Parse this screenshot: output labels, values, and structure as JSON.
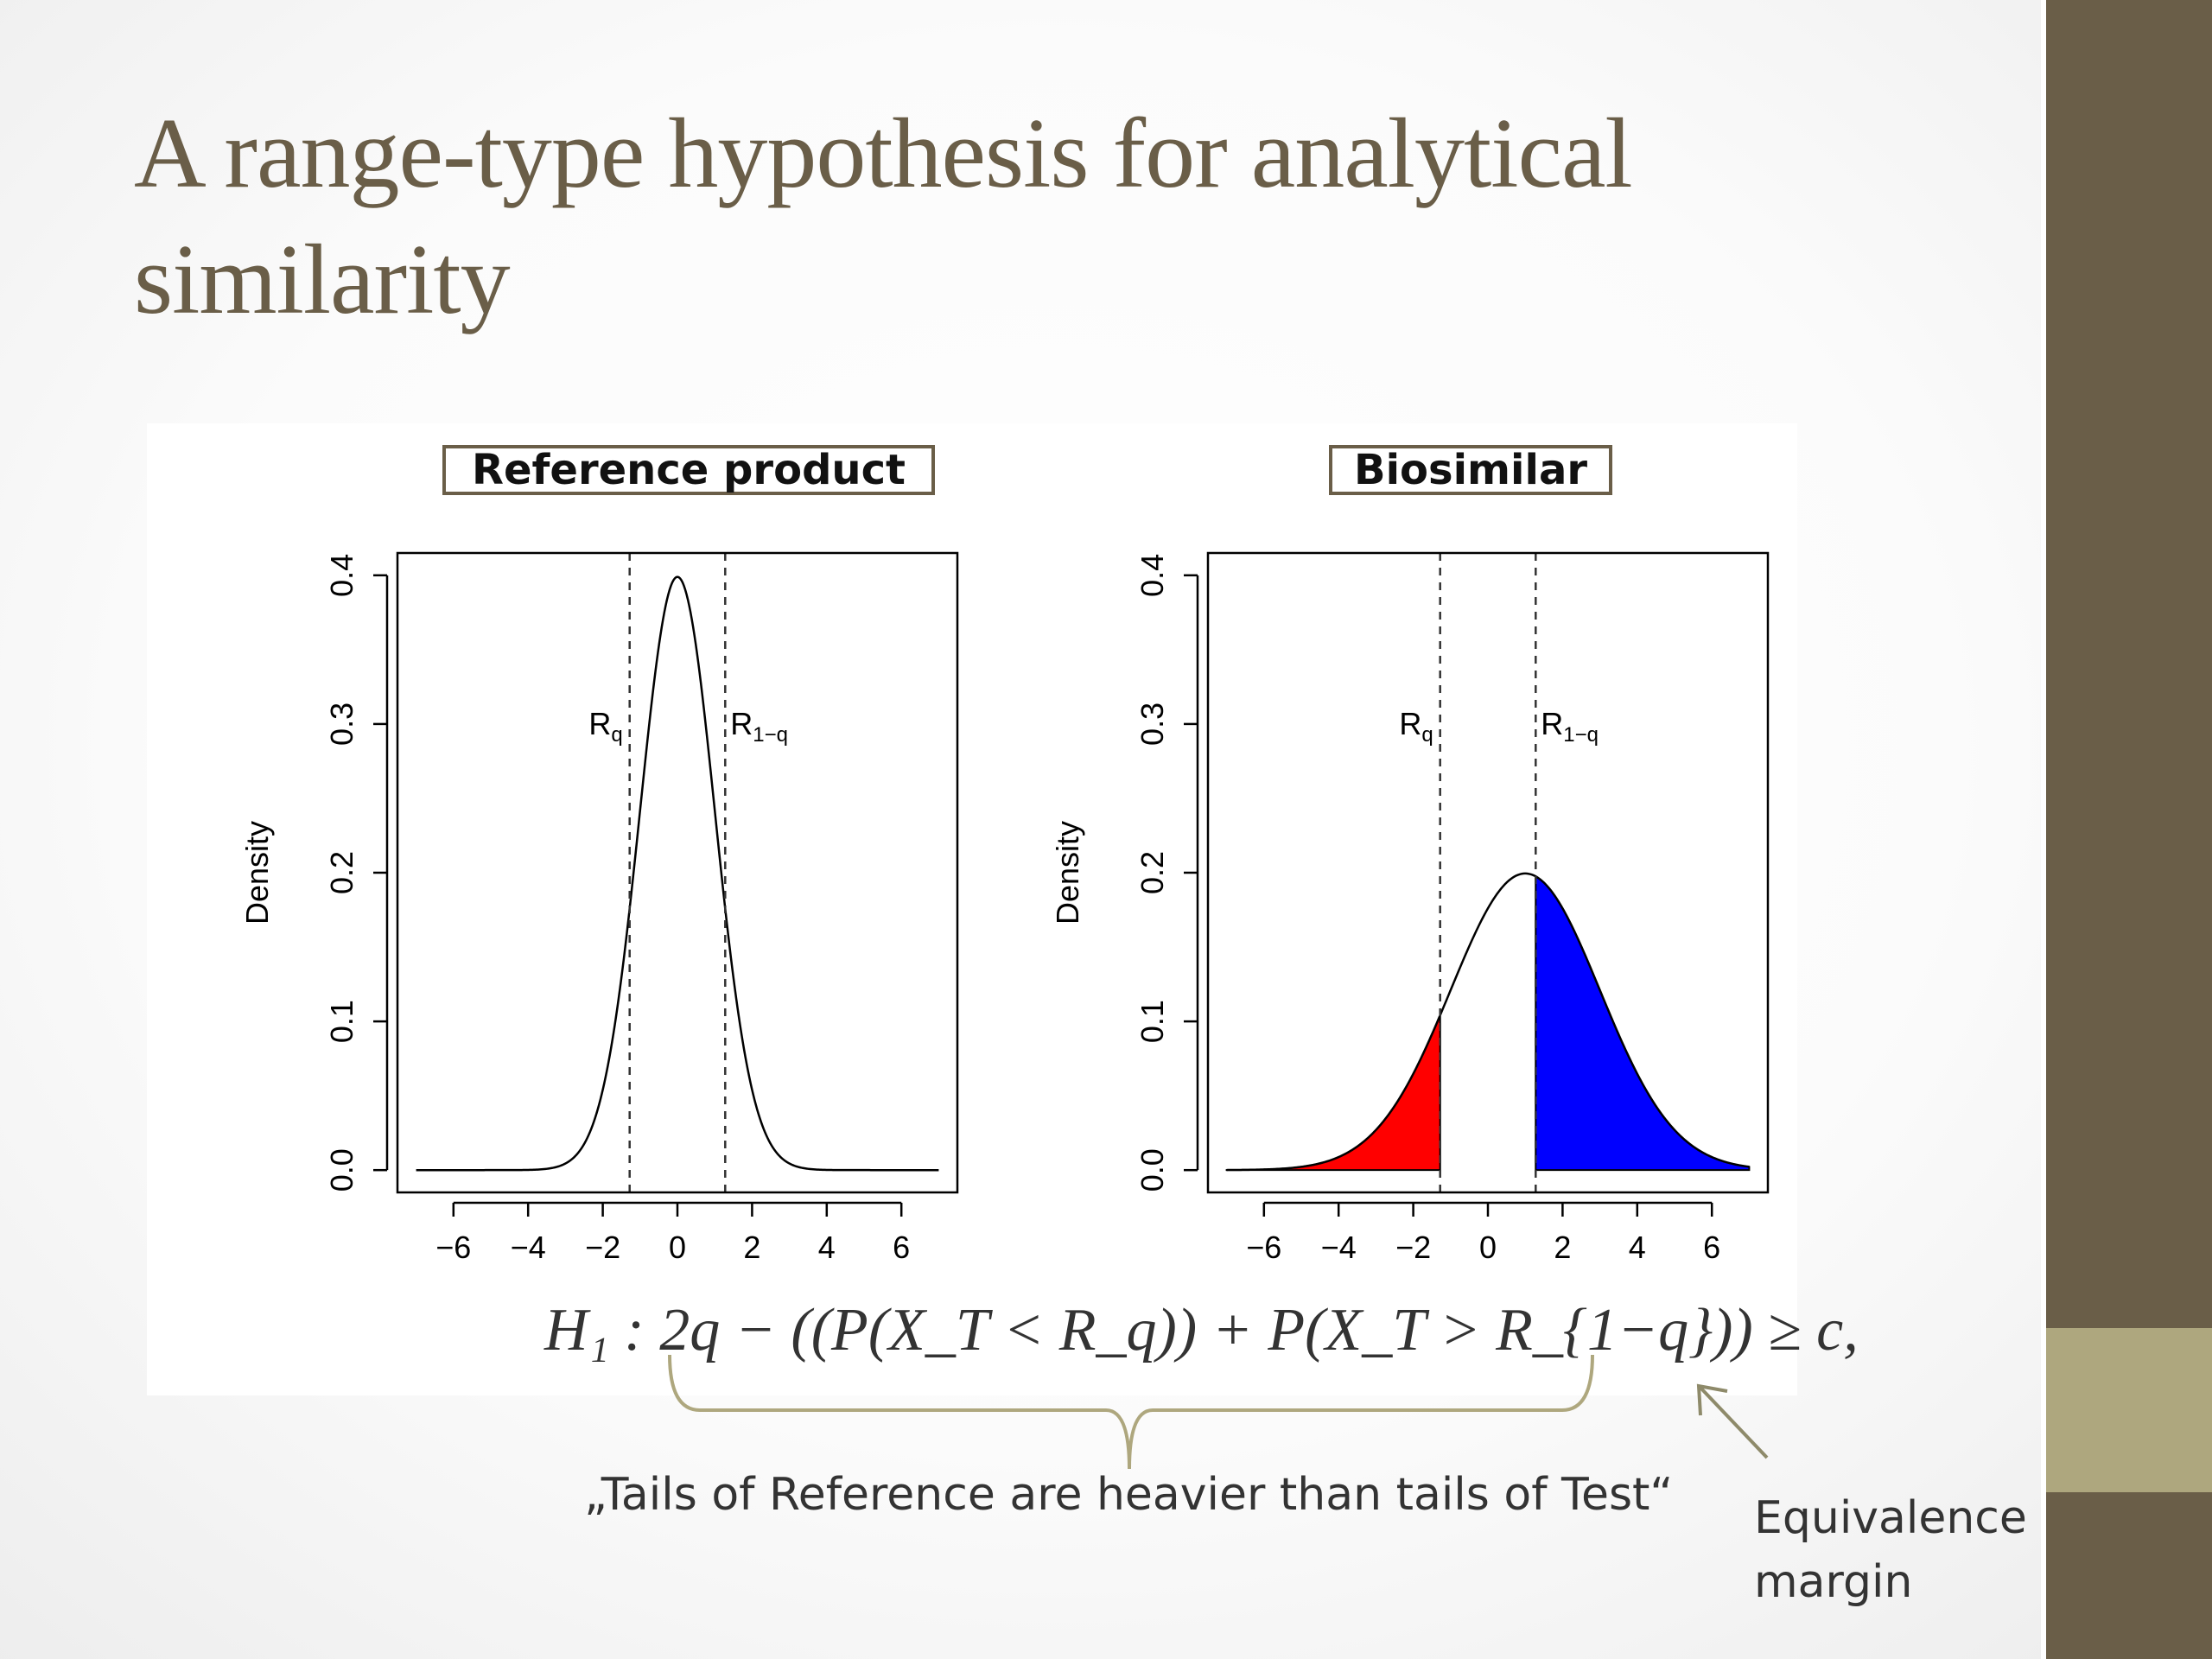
{
  "slide": {
    "title": "A range-type hypothesis for analytical similarity",
    "formula": "H₁ :  2q − ((P(X_T < R_q)) + P(X_T > R_{1−q})) ≥ c,",
    "caption": "„Tails of Reference are heavier than tails of Test“",
    "margin_label_line1": "Equivalence",
    "margin_label_line2": "margin",
    "colors": {
      "title": "#6a5e48",
      "sidebar": "#6a5e48",
      "sidebar_accent": "#aea77e",
      "lower_tail_fill": "#ff0000",
      "upper_tail_fill": "#0000ff",
      "brace": "#aea77e"
    }
  },
  "chart_data": [
    {
      "type": "line",
      "panel_title": "Reference product",
      "ylabel": "Density",
      "xlabel": "",
      "curve": "normal density",
      "mean": 0,
      "sd": 1,
      "x_range": [
        -7,
        7
      ],
      "xlim": [
        -7.5,
        7.5
      ],
      "ylim": [
        -0.015,
        0.415
      ],
      "x_ticks": [
        -6,
        -4,
        -2,
        0,
        2,
        4,
        6
      ],
      "y_ticks": [
        0.0,
        0.1,
        0.2,
        0.3,
        0.4
      ],
      "x_tick_labels": [
        "−6",
        "−4",
        "−2",
        "0",
        "2",
        "4",
        "6"
      ],
      "y_tick_labels": [
        "0.0",
        "0.1",
        "0.2",
        "0.3",
        "0.4"
      ],
      "vlines": [
        {
          "x": -1.28,
          "label": "R",
          "sub": "q",
          "side": "left"
        },
        {
          "x": 1.28,
          "label": "R",
          "sub": "1−q",
          "side": "right"
        }
      ],
      "shaded": []
    },
    {
      "type": "line",
      "panel_title": "Biosimilar",
      "ylabel": "Density",
      "xlabel": "",
      "curve": "normal density",
      "mean": 1,
      "sd": 2,
      "x_range": [
        -7,
        7
      ],
      "xlim": [
        -7.5,
        7.5
      ],
      "ylim": [
        -0.015,
        0.415
      ],
      "x_ticks": [
        -6,
        -4,
        -2,
        0,
        2,
        4,
        6
      ],
      "y_ticks": [
        0.0,
        0.1,
        0.2,
        0.3,
        0.4
      ],
      "x_tick_labels": [
        "−6",
        "−4",
        "−2",
        "0",
        "2",
        "4",
        "6"
      ],
      "y_tick_labels": [
        "0.0",
        "0.1",
        "0.2",
        "0.3",
        "0.4"
      ],
      "vlines": [
        {
          "x": -1.28,
          "label": "R",
          "sub": "q",
          "side": "left"
        },
        {
          "x": 1.28,
          "label": "R",
          "sub": "1−q",
          "side": "right"
        }
      ],
      "shaded": [
        {
          "from": -7,
          "to": -1.28,
          "color": "#ff0000"
        },
        {
          "from": 1.28,
          "to": 7,
          "color": "#0000ff"
        }
      ]
    }
  ]
}
